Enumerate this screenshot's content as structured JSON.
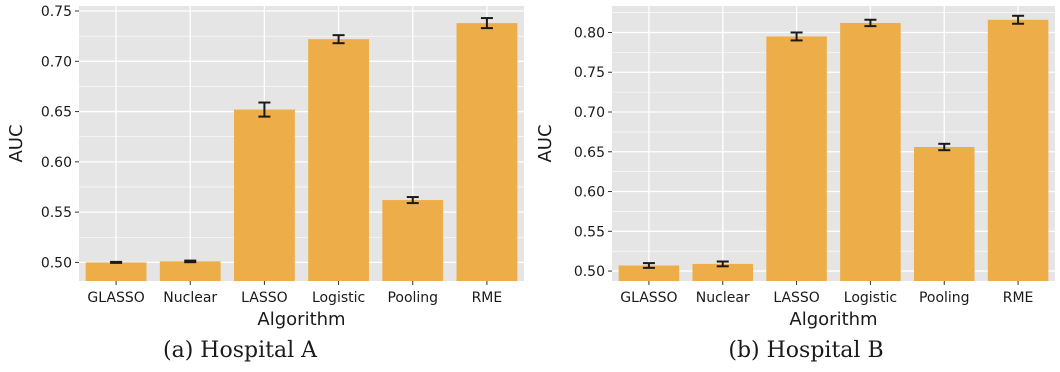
{
  "colors": {
    "bar": "#edae49",
    "panel": "#e5e5e5",
    "grid": "#ffffff",
    "errorbar": "#1a1a1a"
  },
  "chart_data": [
    {
      "type": "bar",
      "caption": "(a) Hospital A",
      "xlabel": "Algorithm",
      "ylabel": "AUC",
      "categories": [
        "GLASSO",
        "Nuclear",
        "LASSO",
        "Logistic",
        "Pooling",
        "RME"
      ],
      "values": [
        0.5,
        0.501,
        0.652,
        0.722,
        0.562,
        0.738
      ],
      "errors": [
        0.0005,
        0.0008,
        0.007,
        0.004,
        0.003,
        0.005
      ],
      "ylim": [
        0.4815,
        0.755
      ],
      "yticks": [
        "0.50",
        "0.55",
        "0.60",
        "0.65",
        "0.70",
        "0.75"
      ],
      "grid": true
    },
    {
      "type": "bar",
      "caption": "(b) Hospital B",
      "xlabel": "Algorithm",
      "ylabel": "AUC",
      "categories": [
        "GLASSO",
        "Nuclear",
        "LASSO",
        "Logistic",
        "Pooling",
        "RME"
      ],
      "values": [
        0.507,
        0.509,
        0.795,
        0.812,
        0.656,
        0.816
      ],
      "errors": [
        0.003,
        0.003,
        0.005,
        0.004,
        0.004,
        0.005
      ],
      "ylim": [
        0.4875,
        0.8333
      ],
      "yticks": [
        "0.50",
        "0.55",
        "0.60",
        "0.65",
        "0.70",
        "0.75",
        "0.80"
      ],
      "grid": true
    }
  ]
}
